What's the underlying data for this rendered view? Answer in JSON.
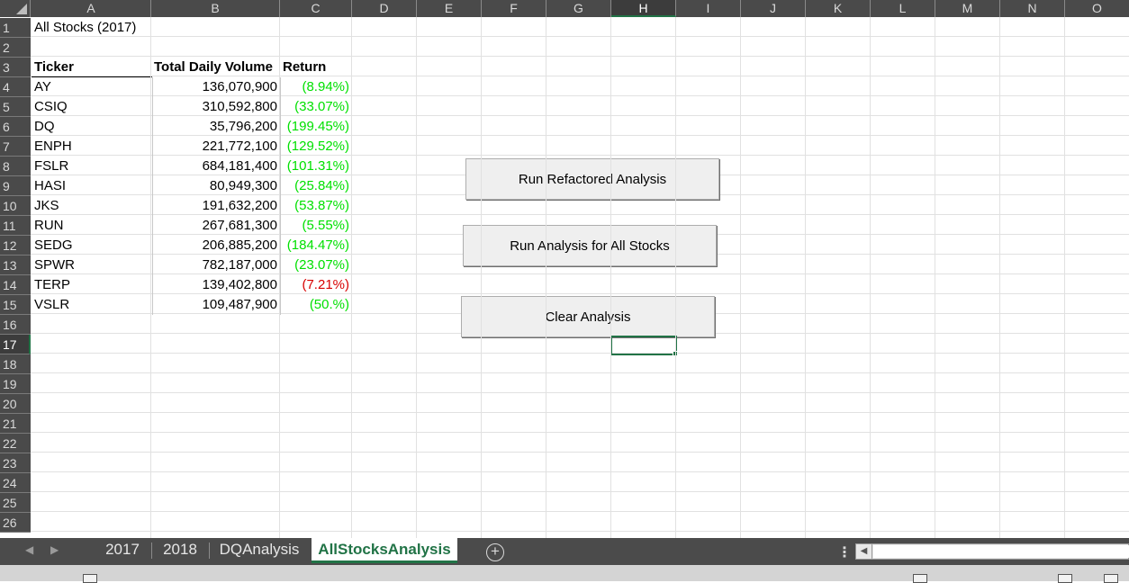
{
  "columns": [
    "A",
    "B",
    "C",
    "D",
    "E",
    "F",
    "G",
    "H",
    "I",
    "J",
    "K",
    "L",
    "M",
    "N",
    "O"
  ],
  "active_column": "H",
  "rows": [
    "1",
    "2",
    "3",
    "4",
    "5",
    "6",
    "7",
    "8",
    "9",
    "10",
    "11",
    "12",
    "13",
    "14",
    "15",
    "16",
    "17",
    "18",
    "19",
    "20",
    "21",
    "22",
    "23",
    "24",
    "25",
    "26"
  ],
  "active_row": "17",
  "sheet": {
    "title": "All Stocks (2017)",
    "headers": {
      "ticker": "Ticker",
      "volume": "Total Daily Volume",
      "return": "Return"
    },
    "data": [
      {
        "ticker": "AY",
        "volume": "136,070,900",
        "return": "(8.94%)",
        "color": "#00e000"
      },
      {
        "ticker": "CSIQ",
        "volume": "310,592,800",
        "return": "(33.07%)",
        "color": "#00e000"
      },
      {
        "ticker": "DQ",
        "volume": "35,796,200",
        "return": "(199.45%)",
        "color": "#00e000"
      },
      {
        "ticker": "ENPH",
        "volume": "221,772,100",
        "return": "(129.52%)",
        "color": "#00e000"
      },
      {
        "ticker": "FSLR",
        "volume": "684,181,400",
        "return": "(101.31%)",
        "color": "#00e000"
      },
      {
        "ticker": "HASI",
        "volume": "80,949,300",
        "return": "(25.84%)",
        "color": "#00e000"
      },
      {
        "ticker": "JKS",
        "volume": "191,632,200",
        "return": "(53.87%)",
        "color": "#00e000"
      },
      {
        "ticker": "RUN",
        "volume": "267,681,300",
        "return": "(5.55%)",
        "color": "#00e000"
      },
      {
        "ticker": "SEDG",
        "volume": "206,885,200",
        "return": "(184.47%)",
        "color": "#00e000"
      },
      {
        "ticker": "SPWR",
        "volume": "782,187,000",
        "return": "(23.07%)",
        "color": "#00e000"
      },
      {
        "ticker": "TERP",
        "volume": "139,402,800",
        "return": "(7.21%)",
        "color": "#d80000"
      },
      {
        "ticker": "VSLR",
        "volume": "109,487,900",
        "return": "(50.%)",
        "color": "#00e000"
      }
    ]
  },
  "buttons": {
    "refactored": "Run Refactored Analysis",
    "all_stocks": "Run Analysis for All Stocks",
    "clear": "Clear Analysis"
  },
  "tabs": [
    {
      "label": "2017",
      "active": false
    },
    {
      "label": "2018",
      "active": false
    },
    {
      "label": "DQAnalysis",
      "active": false
    },
    {
      "label": "AllStocksAnalysis",
      "active": true
    }
  ],
  "colors": {
    "accent": "#217346",
    "positive_return": "#00e000",
    "negative_return": "#d80000",
    "header_bg": "#4a4a4a"
  },
  "icons": {
    "add_sheet": "plus-circle-icon",
    "nav_prev": "triangle-left-icon",
    "nav_next": "triangle-right-icon",
    "splitter": "vertical-ellipsis-icon"
  }
}
